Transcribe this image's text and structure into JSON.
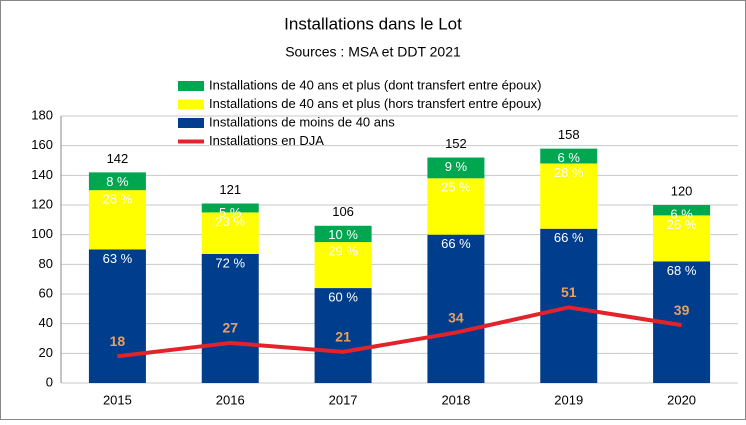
{
  "chart_data": {
    "type": "stacked-bar-line",
    "title": "Installations dans le Lot",
    "subtitle": "Sources : MSA et DDT 2021",
    "categories": [
      "2015",
      "2016",
      "2017",
      "2018",
      "2019",
      "2020"
    ],
    "series": [
      {
        "name": "Installations de 40 ans et plus (dont transfert entre époux)",
        "color": "#00a650",
        "kind": "bar",
        "values": [
          12,
          6,
          11,
          14,
          10,
          7
        ],
        "percent_labels": [
          "8 %",
          "5 %",
          "10 %",
          "9 %",
          "6 %",
          "6 %"
        ]
      },
      {
        "name": "Installations de 40 ans et plus (hors transfert entre époux)",
        "color": "#ffff00",
        "kind": "bar",
        "values": [
          40,
          28,
          31,
          38,
          44,
          31
        ],
        "percent_labels": [
          "28 %",
          "23 %",
          "29 %",
          "25 %",
          "28 %",
          "26 %"
        ]
      },
      {
        "name": "Installations de moins de 40 ans",
        "color": "#003d8c",
        "kind": "bar",
        "values": [
          90,
          87,
          64,
          100,
          104,
          82
        ],
        "percent_labels": [
          "63 %",
          "72 %",
          "60 %",
          "66 %",
          "66 %",
          "68 %"
        ]
      },
      {
        "name": "Installations en DJA",
        "color": "#e3232b",
        "kind": "line",
        "values": [
          18,
          27,
          21,
          34,
          51,
          39
        ]
      }
    ],
    "totals": [
      142,
      121,
      106,
      152,
      158,
      120
    ],
    "ylim": [
      0,
      180
    ],
    "yticks": [
      0,
      20,
      40,
      60,
      80,
      100,
      120,
      140,
      160,
      180
    ],
    "grid": true,
    "legend": "top-left"
  }
}
